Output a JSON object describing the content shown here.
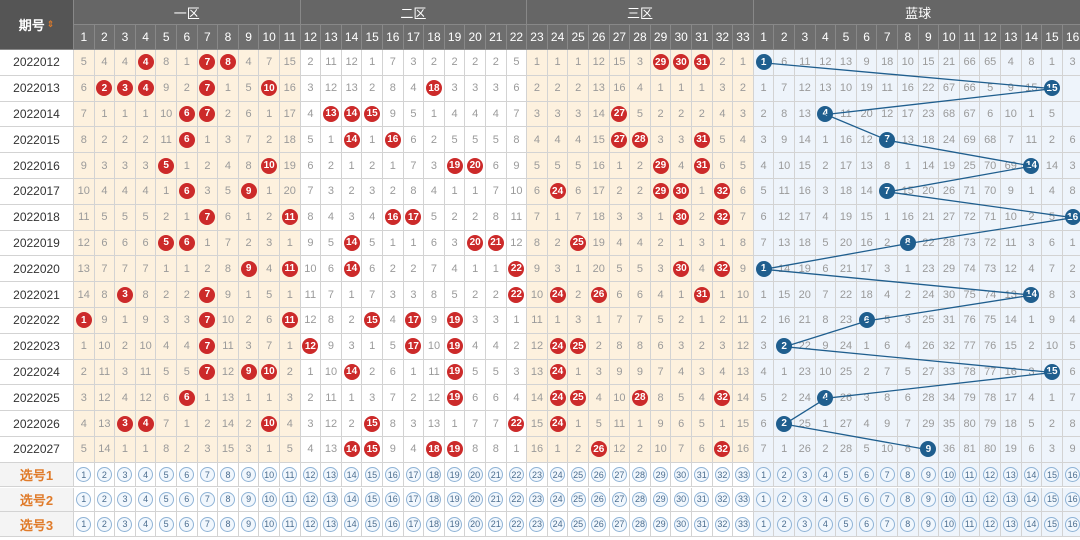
{
  "header": {
    "period_label": "期号",
    "zones": [
      "一区",
      "二区",
      "三区",
      "蓝球"
    ],
    "red_numbers": [
      "1",
      "2",
      "3",
      "4",
      "5",
      "6",
      "7",
      "8",
      "9",
      "10",
      "11",
      "12",
      "13",
      "14",
      "15",
      "16",
      "17",
      "18",
      "19",
      "20",
      "21",
      "22",
      "23",
      "24",
      "25",
      "26",
      "27",
      "28",
      "29",
      "30",
      "31",
      "32",
      "33"
    ],
    "blue_numbers": [
      "1",
      "2",
      "3",
      "4",
      "5",
      "6",
      "7",
      "8",
      "9",
      "10",
      "11",
      "12",
      "13",
      "14",
      "15",
      "16"
    ]
  },
  "rows": [
    {
      "period": "2022012",
      "cells": [
        "5",
        "4",
        "4",
        "4",
        "8",
        "1",
        "7",
        "8",
        "4",
        "7",
        "15",
        "2",
        "11",
        "12",
        "1",
        "7",
        "3",
        "2",
        "2",
        "2",
        "2",
        "5",
        "1",
        "1",
        "1",
        "12",
        "15",
        "3",
        "29",
        "30",
        "31",
        "2",
        "1",
        "1",
        "6",
        "11",
        "12",
        "13",
        "9",
        "18",
        "10",
        "15",
        "21",
        "66",
        "65",
        "4",
        "8",
        "1",
        "3"
      ],
      "red": [
        4,
        7,
        8,
        29,
        30,
        31
      ],
      "blue": 1
    },
    {
      "period": "2022013",
      "cells": [
        "6",
        "2",
        "3",
        "4",
        "9",
        "2",
        "7",
        "1",
        "5",
        "10",
        "16",
        "3",
        "12",
        "13",
        "2",
        "8",
        "4",
        "18",
        "3",
        "3",
        "3",
        "6",
        "2",
        "2",
        "2",
        "13",
        "16",
        "4",
        "1",
        "1",
        "1",
        "3",
        "2",
        "1",
        "7",
        "12",
        "13",
        "10",
        "19",
        "11",
        "16",
        "22",
        "67",
        "66",
        "5",
        "9",
        "15",
        "4"
      ],
      "red": [
        2,
        3,
        4,
        7,
        10,
        18
      ],
      "blue": 15
    },
    {
      "period": "2022014",
      "cells": [
        "7",
        "1",
        "1",
        "1",
        "10",
        "6",
        "7",
        "2",
        "6",
        "1",
        "17",
        "4",
        "13",
        "14",
        "15",
        "9",
        "5",
        "1",
        "4",
        "4",
        "4",
        "7",
        "3",
        "3",
        "3",
        "14",
        "27",
        "5",
        "2",
        "2",
        "2",
        "4",
        "3",
        "2",
        "8",
        "13",
        "4",
        "11",
        "20",
        "12",
        "17",
        "23",
        "68",
        "67",
        "6",
        "10",
        "1",
        "5"
      ],
      "red": [
        6,
        7,
        13,
        14,
        15,
        27
      ],
      "blue": 4
    },
    {
      "period": "2022015",
      "cells": [
        "8",
        "2",
        "2",
        "2",
        "11",
        "6",
        "1",
        "3",
        "7",
        "2",
        "18",
        "5",
        "1",
        "14",
        "1",
        "16",
        "6",
        "2",
        "5",
        "5",
        "5",
        "8",
        "4",
        "4",
        "4",
        "15",
        "27",
        "28",
        "3",
        "3",
        "31",
        "5",
        "4",
        "3",
        "9",
        "14",
        "1",
        "16",
        "12",
        "7",
        "13",
        "18",
        "24",
        "69",
        "68",
        "7",
        "11",
        "2",
        "6"
      ],
      "red": [
        6,
        14,
        16,
        27,
        28,
        31
      ],
      "blue": 7
    },
    {
      "period": "2022016",
      "cells": [
        "9",
        "3",
        "3",
        "3",
        "5",
        "1",
        "2",
        "4",
        "8",
        "10",
        "19",
        "6",
        "2",
        "1",
        "2",
        "1",
        "7",
        "3",
        "19",
        "20",
        "6",
        "9",
        "5",
        "5",
        "5",
        "16",
        "1",
        "2",
        "29",
        "4",
        "31",
        "6",
        "5",
        "4",
        "10",
        "15",
        "2",
        "17",
        "13",
        "8",
        "1",
        "14",
        "19",
        "25",
        "70",
        "69",
        "8",
        "14",
        "3",
        "7"
      ],
      "red": [
        5,
        10,
        19,
        20,
        29,
        31
      ],
      "blue": 14
    },
    {
      "period": "2022017",
      "cells": [
        "10",
        "4",
        "4",
        "4",
        "1",
        "6",
        "3",
        "5",
        "9",
        "1",
        "20",
        "7",
        "3",
        "2",
        "3",
        "2",
        "8",
        "4",
        "1",
        "1",
        "7",
        "10",
        "6",
        "24",
        "6",
        "17",
        "2",
        "2",
        "29",
        "30",
        "1",
        "32",
        "6",
        "5",
        "11",
        "16",
        "3",
        "18",
        "14",
        "7",
        "15",
        "20",
        "26",
        "71",
        "70",
        "9",
        "1",
        "4",
        "8"
      ],
      "red": [
        6,
        9,
        24,
        29,
        30,
        32
      ],
      "blue": 7
    },
    {
      "period": "2022018",
      "cells": [
        "11",
        "5",
        "5",
        "5",
        "2",
        "1",
        "7",
        "6",
        "1",
        "2",
        "11",
        "8",
        "4",
        "3",
        "4",
        "16",
        "17",
        "5",
        "2",
        "2",
        "8",
        "11",
        "7",
        "1",
        "7",
        "18",
        "3",
        "3",
        "1",
        "30",
        "2",
        "32",
        "7",
        "6",
        "12",
        "17",
        "4",
        "19",
        "15",
        "1",
        "16",
        "21",
        "27",
        "72",
        "71",
        "10",
        "2",
        "5",
        "16"
      ],
      "red": [
        7,
        11,
        16,
        17,
        30,
        32
      ],
      "blue": 16
    },
    {
      "period": "2022019",
      "cells": [
        "12",
        "6",
        "6",
        "6",
        "5",
        "6",
        "1",
        "7",
        "2",
        "3",
        "1",
        "9",
        "5",
        "14",
        "5",
        "1",
        "1",
        "6",
        "3",
        "20",
        "21",
        "12",
        "8",
        "2",
        "25",
        "19",
        "4",
        "4",
        "2",
        "1",
        "3",
        "1",
        "8",
        "7",
        "13",
        "18",
        "5",
        "20",
        "16",
        "2",
        "8",
        "22",
        "28",
        "73",
        "72",
        "11",
        "3",
        "6",
        "1"
      ],
      "red": [
        5,
        6,
        14,
        20,
        21,
        25
      ],
      "blue": 8
    },
    {
      "period": "2022020",
      "cells": [
        "13",
        "7",
        "7",
        "7",
        "1",
        "1",
        "2",
        "8",
        "9",
        "4",
        "11",
        "10",
        "6",
        "14",
        "6",
        "2",
        "2",
        "7",
        "4",
        "1",
        "1",
        "22",
        "9",
        "3",
        "1",
        "20",
        "5",
        "5",
        "3",
        "30",
        "4",
        "32",
        "9",
        "1",
        "14",
        "19",
        "6",
        "21",
        "17",
        "3",
        "1",
        "23",
        "29",
        "74",
        "73",
        "12",
        "4",
        "7",
        "2"
      ],
      "red": [
        9,
        11,
        14,
        22,
        30,
        32
      ],
      "blue": 1
    },
    {
      "period": "2022021",
      "cells": [
        "14",
        "8",
        "3",
        "8",
        "2",
        "2",
        "7",
        "9",
        "1",
        "5",
        "1",
        "11",
        "7",
        "1",
        "7",
        "3",
        "3",
        "8",
        "5",
        "2",
        "2",
        "22",
        "10",
        "24",
        "2",
        "26",
        "6",
        "6",
        "4",
        "1",
        "31",
        "1",
        "10",
        "1",
        "15",
        "20",
        "7",
        "22",
        "18",
        "4",
        "2",
        "24",
        "30",
        "75",
        "74",
        "13",
        "14",
        "8",
        "3"
      ],
      "red": [
        3,
        7,
        22,
        24,
        26,
        31
      ],
      "blue": 14
    },
    {
      "period": "2022022",
      "cells": [
        "1",
        "9",
        "1",
        "9",
        "3",
        "3",
        "7",
        "10",
        "2",
        "6",
        "11",
        "12",
        "8",
        "2",
        "15",
        "4",
        "17",
        "9",
        "19",
        "3",
        "3",
        "1",
        "11",
        "1",
        "3",
        "1",
        "7",
        "7",
        "5",
        "2",
        "1",
        "2",
        "11",
        "2",
        "16",
        "21",
        "8",
        "23",
        "6",
        "5",
        "3",
        "25",
        "31",
        "76",
        "75",
        "14",
        "1",
        "9",
        "4"
      ],
      "red": [
        1,
        7,
        11,
        15,
        17,
        19
      ],
      "blue": 6
    },
    {
      "period": "2022023",
      "cells": [
        "1",
        "10",
        "2",
        "10",
        "4",
        "4",
        "7",
        "11",
        "3",
        "7",
        "1",
        "12",
        "9",
        "3",
        "1",
        "5",
        "17",
        "10",
        "19",
        "4",
        "4",
        "2",
        "12",
        "24",
        "25",
        "2",
        "8",
        "8",
        "6",
        "3",
        "2",
        "3",
        "12",
        "3",
        "2",
        "22",
        "9",
        "24",
        "1",
        "6",
        "4",
        "26",
        "32",
        "77",
        "76",
        "15",
        "2",
        "10",
        "5"
      ],
      "red": [
        7,
        12,
        17,
        19,
        24,
        25
      ],
      "blue": 2
    },
    {
      "period": "2022024",
      "cells": [
        "2",
        "11",
        "3",
        "11",
        "5",
        "5",
        "7",
        "12",
        "9",
        "10",
        "2",
        "1",
        "10",
        "14",
        "2",
        "6",
        "1",
        "11",
        "19",
        "5",
        "5",
        "3",
        "13",
        "24",
        "1",
        "3",
        "9",
        "9",
        "7",
        "4",
        "3",
        "4",
        "13",
        "4",
        "1",
        "23",
        "10",
        "25",
        "2",
        "7",
        "5",
        "27",
        "33",
        "78",
        "77",
        "16",
        "3",
        "15",
        "6"
      ],
      "red": [
        7,
        9,
        10,
        14,
        19,
        24
      ],
      "blue": 15
    },
    {
      "period": "2022025",
      "cells": [
        "3",
        "12",
        "4",
        "12",
        "6",
        "6",
        "1",
        "13",
        "1",
        "1",
        "3",
        "2",
        "11",
        "1",
        "3",
        "7",
        "2",
        "12",
        "19",
        "6",
        "6",
        "4",
        "14",
        "24",
        "25",
        "4",
        "10",
        "28",
        "8",
        "5",
        "4",
        "32",
        "14",
        "5",
        "2",
        "24",
        "4",
        "26",
        "3",
        "8",
        "6",
        "28",
        "34",
        "79",
        "78",
        "17",
        "4",
        "1",
        "7"
      ],
      "red": [
        6,
        19,
        24,
        25,
        28,
        32
      ],
      "blue": 4
    },
    {
      "period": "2022026",
      "cells": [
        "4",
        "13",
        "3",
        "4",
        "7",
        "1",
        "2",
        "14",
        "2",
        "10",
        "4",
        "3",
        "12",
        "2",
        "15",
        "8",
        "3",
        "13",
        "1",
        "7",
        "7",
        "22",
        "15",
        "24",
        "1",
        "5",
        "11",
        "1",
        "9",
        "6",
        "5",
        "1",
        "15",
        "6",
        "2",
        "25",
        "1",
        "27",
        "4",
        "9",
        "7",
        "29",
        "35",
        "80",
        "79",
        "18",
        "5",
        "2",
        "8"
      ],
      "red": [
        3,
        4,
        10,
        15,
        22,
        24
      ],
      "blue": 2
    },
    {
      "period": "2022027",
      "cells": [
        "5",
        "14",
        "1",
        "1",
        "8",
        "2",
        "3",
        "15",
        "3",
        "1",
        "5",
        "4",
        "13",
        "14",
        "15",
        "9",
        "4",
        "18",
        "19",
        "8",
        "8",
        "1",
        "16",
        "1",
        "2",
        "26",
        "12",
        "2",
        "10",
        "7",
        "6",
        "32",
        "16",
        "7",
        "1",
        "26",
        "2",
        "28",
        "5",
        "10",
        "8",
        "9",
        "36",
        "81",
        "80",
        "19",
        "6",
        "3",
        "9"
      ],
      "red": [
        14,
        15,
        18,
        19,
        26,
        32
      ],
      "blue": 9
    }
  ],
  "selectors": {
    "labels": [
      "选号1",
      "选号2",
      "选号3"
    ]
  },
  "colors": {
    "red_ball": "#cc2a2a",
    "blue_ball": "#1f5e8e",
    "zone_bg": "#fdf1de",
    "blue_zone_bg": "#eef4fb",
    "select_label": "#e07b2a"
  }
}
